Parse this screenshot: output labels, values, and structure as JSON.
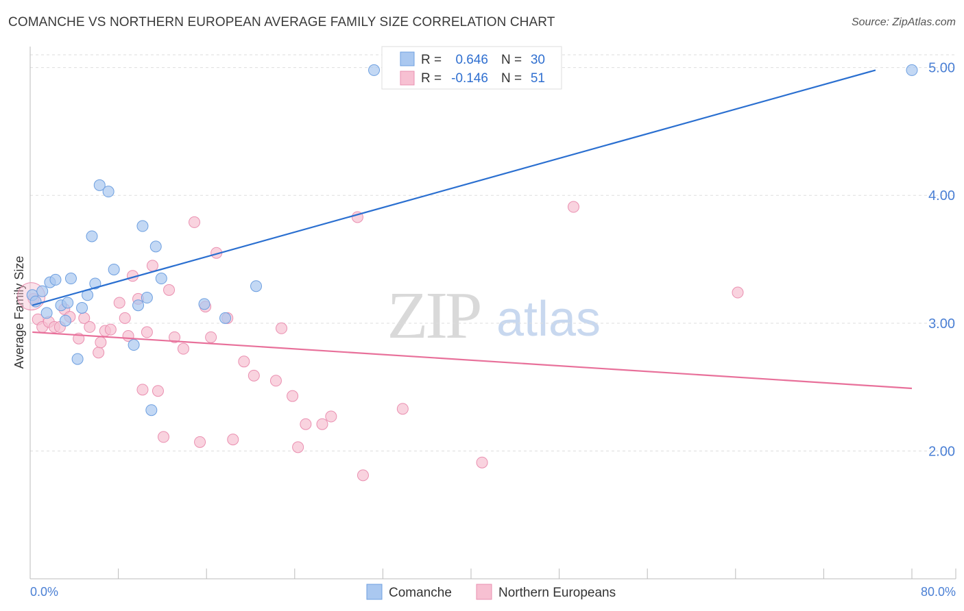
{
  "header": {
    "title": "COMANCHE VS NORTHERN EUROPEAN AVERAGE FAMILY SIZE CORRELATION CHART",
    "source": "Source: ZipAtlas.com"
  },
  "watermark": {
    "zip": "ZIP",
    "atlas": "atlas"
  },
  "legend_box": {
    "rows": [
      {
        "r_label": "R =",
        "r_value": "0.646",
        "n_label": "N =",
        "n_value": "30"
      },
      {
        "r_label": "R =",
        "r_value": "-0.146",
        "n_label": "N =",
        "n_value": "51"
      }
    ]
  },
  "bottom_legend": {
    "items": [
      "Comanche",
      "Northern Europeans"
    ]
  },
  "chart_data": {
    "type": "scatter",
    "title": "COMANCHE VS NORTHERN EUROPEAN AVERAGE FAMILY SIZE CORRELATION CHART",
    "ylabel": "Average Family Size",
    "xlabel": "",
    "x_tick_labels": [
      "0.0%",
      "80.0%"
    ],
    "y_tick_labels": [
      "2.00",
      "3.00",
      "4.00",
      "5.00"
    ],
    "xlim": [
      0,
      80
    ],
    "ylim": [
      1.0,
      5.1
    ],
    "grid": true,
    "legend_position": "bottom",
    "colors": {
      "comanche_fill": "#aac8f0",
      "comanche_stroke": "#6d9fe0",
      "comanche_line": "#2a6fd0",
      "northern_fill": "#f7c0d2",
      "northern_stroke": "#ea8fb0",
      "northern_line": "#e8709a",
      "tick_label": "#4a7fd4",
      "grid": "#dddddd"
    },
    "series": [
      {
        "name": "Comanche",
        "points": [
          [
            0.2,
            3.22
          ],
          [
            0.5,
            3.17
          ],
          [
            1.1,
            3.25
          ],
          [
            1.5,
            3.08
          ],
          [
            1.8,
            3.32
          ],
          [
            2.3,
            3.34
          ],
          [
            2.8,
            3.14
          ],
          [
            3.2,
            3.02
          ],
          [
            3.4,
            3.16
          ],
          [
            3.7,
            3.35
          ],
          [
            4.3,
            2.72
          ],
          [
            4.7,
            3.12
          ],
          [
            5.2,
            3.22
          ],
          [
            5.6,
            3.68
          ],
          [
            5.9,
            3.31
          ],
          [
            6.3,
            4.08
          ],
          [
            7.1,
            4.03
          ],
          [
            7.6,
            3.42
          ],
          [
            9.4,
            2.83
          ],
          [
            9.8,
            3.14
          ],
          [
            10.2,
            3.76
          ],
          [
            10.6,
            3.2
          ],
          [
            11.0,
            2.32
          ],
          [
            11.4,
            3.6
          ],
          [
            11.9,
            3.35
          ],
          [
            15.8,
            3.15
          ],
          [
            17.7,
            3.04
          ],
          [
            20.5,
            3.29
          ],
          [
            31.2,
            4.98
          ],
          [
            80.0,
            4.98
          ]
        ],
        "trend": [
          [
            0.2,
            3.14
          ],
          [
            76.7,
            4.98
          ]
        ]
      },
      {
        "name": "Northern Europeans",
        "points": [
          [
            0.3,
            3.19
          ],
          [
            0.7,
            3.03
          ],
          [
            1.1,
            2.97
          ],
          [
            1.7,
            3.01
          ],
          [
            2.2,
            2.97
          ],
          [
            2.7,
            2.97
          ],
          [
            3.1,
            3.11
          ],
          [
            3.6,
            3.05
          ],
          [
            4.4,
            2.88
          ],
          [
            4.9,
            3.04
          ],
          [
            5.4,
            2.97
          ],
          [
            6.2,
            2.77
          ],
          [
            6.4,
            2.85
          ],
          [
            6.8,
            2.94
          ],
          [
            7.3,
            2.95
          ],
          [
            8.1,
            3.16
          ],
          [
            8.6,
            3.04
          ],
          [
            8.9,
            2.9
          ],
          [
            9.3,
            3.37
          ],
          [
            9.8,
            3.19
          ],
          [
            10.2,
            2.48
          ],
          [
            10.6,
            2.93
          ],
          [
            11.1,
            3.45
          ],
          [
            11.6,
            2.47
          ],
          [
            12.1,
            2.11
          ],
          [
            12.6,
            3.26
          ],
          [
            13.1,
            2.89
          ],
          [
            13.9,
            2.8
          ],
          [
            14.9,
            3.79
          ],
          [
            15.4,
            2.07
          ],
          [
            15.9,
            3.13
          ],
          [
            16.4,
            2.89
          ],
          [
            16.9,
            3.55
          ],
          [
            17.9,
            3.04
          ],
          [
            18.4,
            2.09
          ],
          [
            19.4,
            2.7
          ],
          [
            20.3,
            2.59
          ],
          [
            22.3,
            2.55
          ],
          [
            22.8,
            2.96
          ],
          [
            23.8,
            2.43
          ],
          [
            24.3,
            2.03
          ],
          [
            25.0,
            2.21
          ],
          [
            26.5,
            2.21
          ],
          [
            27.3,
            2.27
          ],
          [
            29.7,
            3.83
          ],
          [
            30.2,
            1.81
          ],
          [
            33.8,
            2.33
          ],
          [
            41.0,
            1.91
          ],
          [
            49.3,
            3.91
          ],
          [
            64.2,
            3.24
          ],
          [
            0.1,
            3.21
          ]
        ],
        "trend": [
          [
            0.2,
            2.93
          ],
          [
            80.0,
            2.49
          ]
        ]
      }
    ]
  }
}
